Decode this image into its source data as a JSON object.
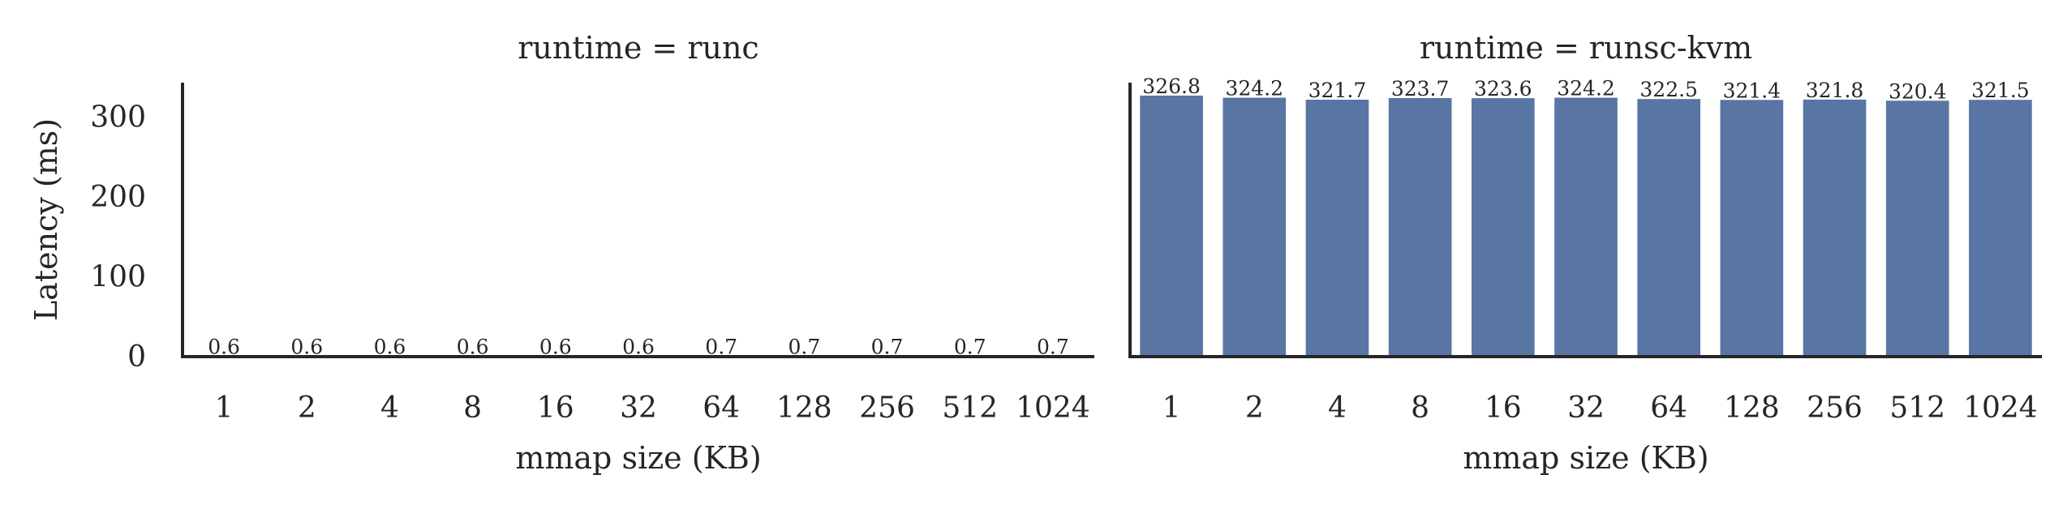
{
  "chart_data": [
    {
      "type": "bar",
      "title": "runtime = runc",
      "xlabel": "mmap size (KB)",
      "ylabel": "Latency (ms)",
      "categories": [
        "1",
        "2",
        "4",
        "8",
        "16",
        "32",
        "64",
        "128",
        "256",
        "512",
        "1024"
      ],
      "values": [
        0.6,
        0.6,
        0.6,
        0.6,
        0.6,
        0.6,
        0.7,
        0.7,
        0.7,
        0.7,
        0.7
      ],
      "data_labels": [
        "0.6",
        "0.6",
        "0.6",
        "0.6",
        "0.6",
        "0.6",
        "0.7",
        "0.7",
        "0.7",
        "0.7",
        "0.7"
      ],
      "yticks": [
        0,
        100,
        200,
        300
      ],
      "ylim": [
        0,
        343
      ],
      "bar_color": "#5975a4",
      "grid": false
    },
    {
      "type": "bar",
      "title": "runtime = runsc-kvm",
      "xlabel": "mmap size (KB)",
      "ylabel": "",
      "categories": [
        "1",
        "2",
        "4",
        "8",
        "16",
        "32",
        "64",
        "128",
        "256",
        "512",
        "1024"
      ],
      "values": [
        326.8,
        324.2,
        321.7,
        323.7,
        323.6,
        324.2,
        322.5,
        321.4,
        321.8,
        320.4,
        321.5
      ],
      "data_labels": [
        "326.8",
        "324.2",
        "321.7",
        "323.7",
        "323.6",
        "324.2",
        "322.5",
        "321.4",
        "321.8",
        "320.4",
        "321.5"
      ],
      "yticks": [
        0,
        100,
        200,
        300
      ],
      "ylim": [
        0,
        343
      ],
      "bar_color": "#5975a4",
      "grid": false
    }
  ]
}
